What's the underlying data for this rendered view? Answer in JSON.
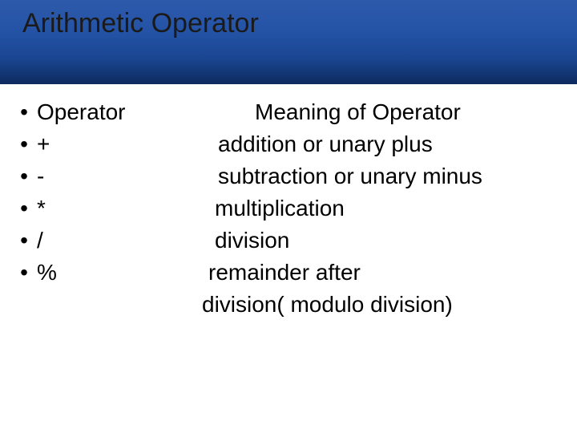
{
  "slide": {
    "title": "Arithmetic Operator",
    "background_color": "#ffffff",
    "header_gradient": [
      "#2e5aab",
      "#0d2a5e"
    ],
    "text_color": "#000000",
    "title_fontsize": 34,
    "body_fontsize": 28
  },
  "header_row": {
    "bullet": "•",
    "left": "Operator",
    "right": "Meaning of Operator"
  },
  "rows": [
    {
      "bullet": "•",
      "op": "+",
      "meaning": "addition or unary plus"
    },
    {
      "bullet": "•",
      "op": "-",
      "meaning": "subtraction or unary minus"
    },
    {
      "bullet": "•",
      "op": "*",
      "meaning": "multiplication"
    },
    {
      "bullet": "•",
      "op": "/",
      "meaning": "division"
    },
    {
      "bullet": "•",
      "op": "%",
      "meaning": "remainder after"
    }
  ],
  "continuation": "division( modulo division)"
}
